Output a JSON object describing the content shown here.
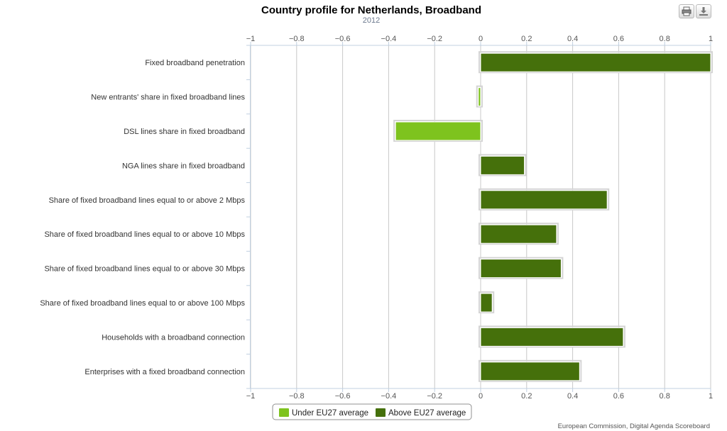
{
  "chart_data": {
    "type": "bar",
    "orientation": "horizontal",
    "title": "Country profile for Netherlands, Broadband",
    "subtitle": "2012",
    "xlim": [
      -1,
      1
    ],
    "ticks": [
      -1,
      -0.8,
      -0.6,
      -0.4,
      -0.2,
      0,
      0.2,
      0.4,
      0.6,
      0.8,
      1
    ],
    "tick_labels": [
      "−1",
      "−0.8",
      "−0.6",
      "−0.4",
      "−0.2",
      "0",
      "0.2",
      "0.4",
      "0.6",
      "0.8",
      "1"
    ],
    "grid": true,
    "categories": [
      "Fixed broadband penetration",
      "New entrants' share in fixed broadband lines",
      "DSL lines share in fixed broadband",
      "NGA lines share in fixed broadband",
      "Share of fixed broadband lines equal to or above 2 Mbps",
      "Share of fixed broadband lines equal to or above 10 Mbps",
      "Share of fixed broadband lines equal to or above 30 Mbps",
      "Share of fixed broadband lines equal to or above 100 Mbps",
      "Households with a broadband connection",
      "Enterprises with a fixed broadband connection"
    ],
    "values": [
      1.0,
      -0.01,
      -0.37,
      0.19,
      0.55,
      0.33,
      0.35,
      0.05,
      0.62,
      0.43
    ],
    "series": [
      {
        "name": "Under EU27 average",
        "color": "#7ec31e"
      },
      {
        "name": "Above EU27 average",
        "color": "#45700b"
      }
    ],
    "legend_position": "bottom-center",
    "credits": "European Commission, Digital Agenda Scoreboard"
  },
  "toolbar": {
    "print_icon": "printer-icon",
    "export_icon": "download-icon"
  }
}
